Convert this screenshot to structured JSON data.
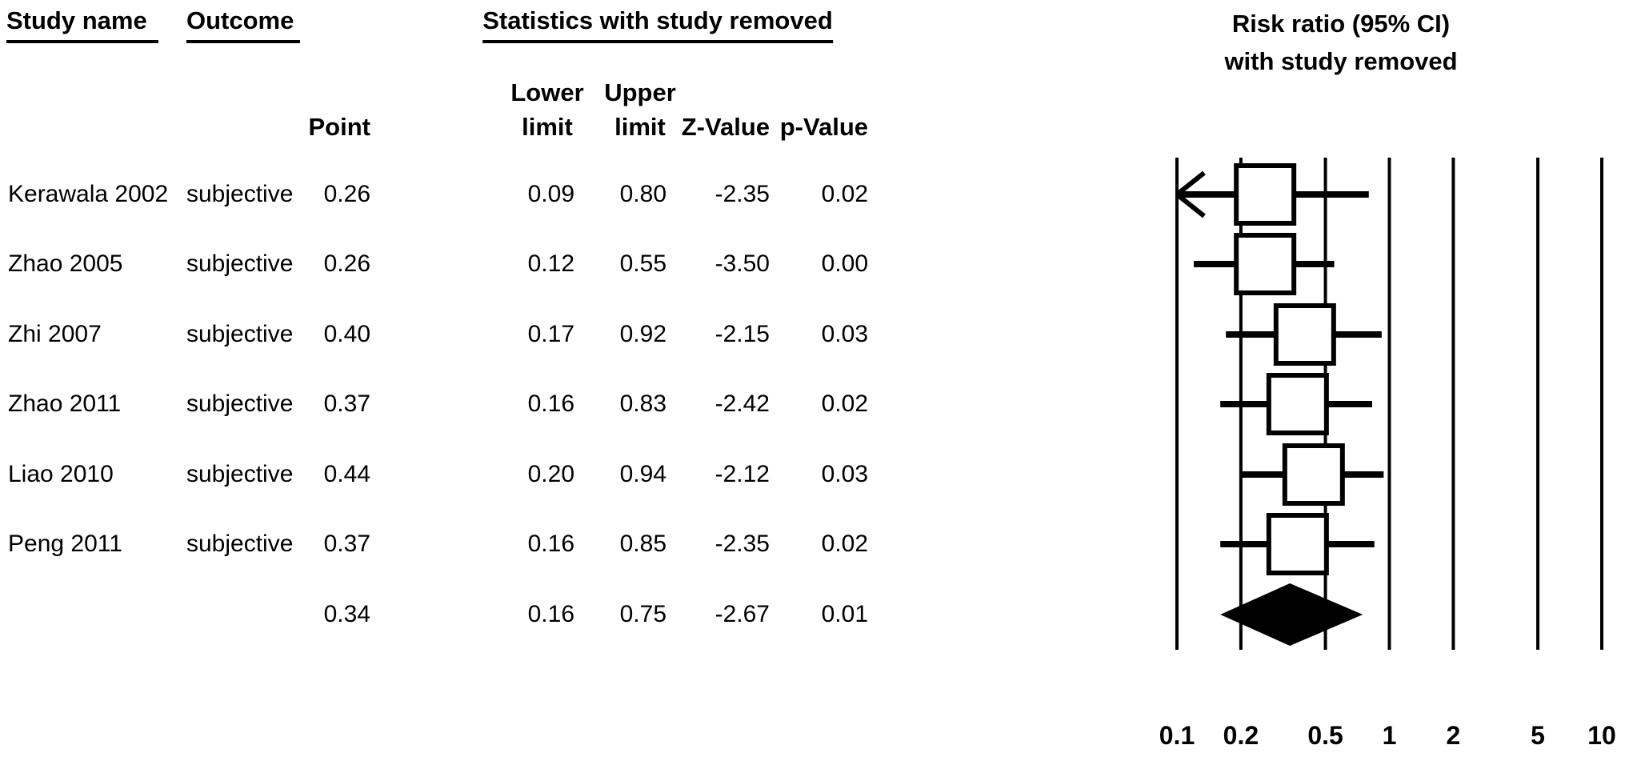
{
  "colors": {
    "text": "#000000",
    "background": "#ffffff"
  },
  "table": {
    "headers": {
      "study_name": "Study name",
      "outcome": "Outcome",
      "statistics_group": "Statistics with study removed"
    },
    "col_headers": [
      {
        "line1": "",
        "line2": "Point"
      },
      {
        "line1": "Lower",
        "line2": "limit"
      },
      {
        "line1": "Upper",
        "line2": "limit"
      },
      {
        "line1": "",
        "line2": "Z-Value"
      },
      {
        "line1": "",
        "line2": "p-Value"
      }
    ],
    "rows": [
      {
        "study": "Kerawala 2002",
        "outcome": "subjective",
        "point": "0.26",
        "lower": "0.09",
        "upper": "0.80",
        "z": "-2.35",
        "p": "0.02"
      },
      {
        "study": "Zhao 2005",
        "outcome": "subjective",
        "point": "0.26",
        "lower": "0.12",
        "upper": "0.55",
        "z": "-3.50",
        "p": "0.00"
      },
      {
        "study": "Zhi 2007",
        "outcome": "subjective",
        "point": "0.40",
        "lower": "0.17",
        "upper": "0.92",
        "z": "-2.15",
        "p": "0.03"
      },
      {
        "study": "Zhao 2011",
        "outcome": "subjective",
        "point": "0.37",
        "lower": "0.16",
        "upper": "0.83",
        "z": "-2.42",
        "p": "0.02"
      },
      {
        "study": "Liao 2010",
        "outcome": "subjective",
        "point": "0.44",
        "lower": "0.20",
        "upper": "0.94",
        "z": "-2.12",
        "p": "0.03"
      },
      {
        "study": "Peng 2011",
        "outcome": "subjective",
        "point": "0.37",
        "lower": "0.16",
        "upper": "0.85",
        "z": "-2.35",
        "p": "0.02"
      },
      {
        "study": "",
        "outcome": "",
        "point": "0.34",
        "lower": "0.16",
        "upper": "0.75",
        "z": "-2.67",
        "p": "0.01"
      }
    ]
  },
  "plot": {
    "title_line1": "Risk ratio (95% CI)",
    "title_line2": "with study removed"
  },
  "chart_data": {
    "type": "forest",
    "title": "Risk ratio (95% CI) with study removed",
    "group_header": "Statistics with study removed",
    "x_scale": "log",
    "xlim": [
      0.1,
      10
    ],
    "x_ticks": [
      0.1,
      0.2,
      0.5,
      1,
      2,
      5,
      10
    ],
    "x_tick_labels": [
      "0.1",
      "0.2",
      "0.5",
      "1",
      "2",
      "5",
      "10"
    ],
    "effect_measure": "Risk ratio (95% CI) with study removed",
    "studies": [
      {
        "study": "Kerawala 2002",
        "outcome": "subjective",
        "point": 0.26,
        "lower": 0.09,
        "upper": 0.8,
        "z": -2.35,
        "p": 0.02
      },
      {
        "study": "Zhao 2005",
        "outcome": "subjective",
        "point": 0.26,
        "lower": 0.12,
        "upper": 0.55,
        "z": -3.5,
        "p": 0.0
      },
      {
        "study": "Zhi 2007",
        "outcome": "subjective",
        "point": 0.4,
        "lower": 0.17,
        "upper": 0.92,
        "z": -2.15,
        "p": 0.03
      },
      {
        "study": "Zhao 2011",
        "outcome": "subjective",
        "point": 0.37,
        "lower": 0.16,
        "upper": 0.83,
        "z": -2.42,
        "p": 0.02
      },
      {
        "study": "Liao 2010",
        "outcome": "subjective",
        "point": 0.44,
        "lower": 0.2,
        "upper": 0.94,
        "z": -2.12,
        "p": 0.03
      },
      {
        "study": "Peng 2011",
        "outcome": "subjective",
        "point": 0.37,
        "lower": 0.16,
        "upper": 0.85,
        "z": -2.35,
        "p": 0.02
      }
    ],
    "summary": {
      "marker": "diamond",
      "point": 0.34,
      "lower": 0.16,
      "upper": 0.75,
      "z": -2.67,
      "p": 0.01
    }
  }
}
